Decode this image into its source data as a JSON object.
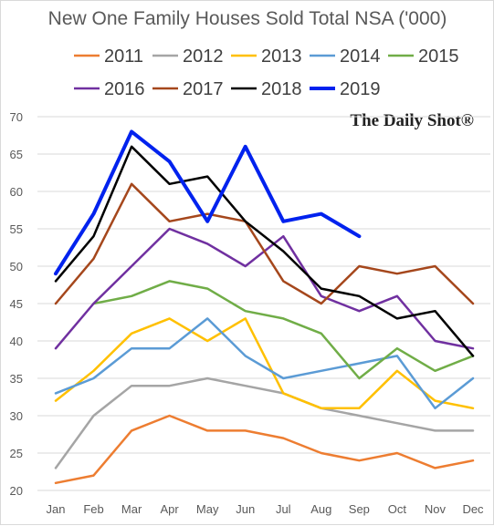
{
  "chart_data": {
    "type": "line",
    "title": "New One Family Houses Sold Total NSA ('000)",
    "watermark": "The Daily Shot®",
    "x_categories": [
      "Jan",
      "Feb",
      "Mar",
      "Apr",
      "May",
      "Jun",
      "Jul",
      "Aug",
      "Sep",
      "Oct",
      "Nov",
      "Dec"
    ],
    "y_ticks": [
      20,
      25,
      30,
      35,
      40,
      45,
      50,
      55,
      60,
      65,
      70
    ],
    "ylim": [
      20,
      70
    ],
    "grid": true,
    "legend_position": "top",
    "series": [
      {
        "name": "2011",
        "color": "#ED7D31",
        "values": [
          21,
          22,
          28,
          30,
          28,
          28,
          27,
          25,
          24,
          25,
          23,
          24
        ]
      },
      {
        "name": "2012",
        "color": "#A5A5A5",
        "values": [
          23,
          30,
          34,
          34,
          35,
          34,
          33,
          31,
          30,
          29,
          28,
          28
        ]
      },
      {
        "name": "2013",
        "color": "#FFC000",
        "values": [
          32,
          36,
          41,
          43,
          40,
          43,
          33,
          31,
          31,
          36,
          32,
          31
        ]
      },
      {
        "name": "2014",
        "color": "#5B9BD5",
        "values": [
          33,
          35,
          39,
          39,
          43,
          38,
          35,
          36,
          37,
          38,
          31,
          35
        ]
      },
      {
        "name": "2015",
        "color": "#70AD47",
        "values": [
          null,
          45,
          46,
          48,
          47,
          44,
          43,
          41,
          35,
          39,
          36,
          38
        ]
      },
      {
        "name": "2016",
        "color": "#7030A0",
        "values": [
          39,
          45,
          50,
          55,
          53,
          50,
          54,
          46,
          44,
          46,
          40,
          39
        ]
      },
      {
        "name": "2017",
        "color": "#A5471C",
        "values": [
          45,
          51,
          61,
          56,
          57,
          56,
          48,
          45,
          50,
          49,
          50,
          45
        ]
      },
      {
        "name": "2018",
        "color": "#000000",
        "values": [
          48,
          54,
          66,
          61,
          62,
          56,
          52,
          47,
          46,
          43,
          44,
          38
        ]
      },
      {
        "name": "2019",
        "color": "#0022EE",
        "values": [
          49,
          57,
          68,
          64,
          56,
          66,
          56,
          57,
          54,
          null,
          null,
          null
        ]
      }
    ]
  }
}
